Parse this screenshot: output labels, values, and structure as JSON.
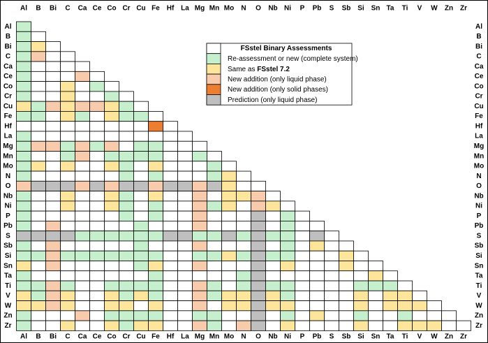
{
  "elements": [
    "Al",
    "B",
    "Bi",
    "C",
    "Ca",
    "Ce",
    "Co",
    "Cr",
    "Cu",
    "Fe",
    "Hf",
    "La",
    "Mg",
    "Mn",
    "Mo",
    "N",
    "O",
    "Nb",
    "Ni",
    "P",
    "Pb",
    "S",
    "Sb",
    "Si",
    "Sn",
    "Ta",
    "Ti",
    "V",
    "W",
    "Zn",
    "Zr"
  ],
  "legend": {
    "title": "FSstel Binary Assessments",
    "items": [
      {
        "label": "Re-assessment or new (complete system)",
        "color": "#c6efce"
      },
      {
        "label": "Same as ",
        "emphasis": "FSstel 7.2",
        "color": "#fde69b"
      },
      {
        "label": "New addition (only liquid phase)",
        "color": "#f8cbad"
      },
      {
        "label": "New addition (only solid phases)",
        "color": "#ed7d31"
      },
      {
        "label": "Prediction (only liquid phase)",
        "color": "#bfbfbf"
      }
    ]
  },
  "matrix": [
    [
      0
    ],
    [
      0,
      null
    ],
    [
      0,
      1,
      null
    ],
    [
      0,
      2,
      null,
      null
    ],
    [
      0,
      null,
      null,
      null,
      null
    ],
    [
      0,
      null,
      null,
      null,
      2,
      null
    ],
    [
      0,
      null,
      null,
      1,
      null,
      0,
      null
    ],
    [
      0,
      null,
      null,
      1,
      null,
      null,
      0,
      null
    ],
    [
      1,
      0,
      2,
      1,
      2,
      2,
      1,
      0,
      null
    ],
    [
      0,
      0,
      null,
      1,
      0,
      null,
      1,
      0,
      0,
      null
    ],
    [
      null,
      null,
      null,
      null,
      null,
      null,
      null,
      null,
      null,
      3,
      null
    ],
    [
      0,
      null,
      null,
      null,
      null,
      null,
      null,
      null,
      null,
      null,
      null,
      null
    ],
    [
      0,
      2,
      2,
      0,
      2,
      0,
      2,
      null,
      0,
      0,
      null,
      null,
      null
    ],
    [
      0,
      null,
      null,
      0,
      2,
      null,
      0,
      0,
      0,
      0,
      null,
      null,
      0,
      null
    ],
    [
      0,
      1,
      null,
      1,
      null,
      null,
      1,
      0,
      null,
      1,
      null,
      null,
      null,
      0,
      null
    ],
    [
      0,
      null,
      null,
      null,
      null,
      null,
      null,
      0,
      null,
      0,
      null,
      null,
      null,
      0,
      1,
      null
    ],
    [
      2,
      4,
      4,
      4,
      2,
      4,
      2,
      4,
      4,
      2,
      4,
      4,
      2,
      4,
      1,
      null,
      null
    ],
    [
      0,
      null,
      null,
      1,
      null,
      null,
      1,
      0,
      null,
      1,
      null,
      null,
      2,
      null,
      1,
      1,
      2,
      null
    ],
    [
      0,
      null,
      null,
      1,
      null,
      null,
      1,
      0,
      null,
      0,
      null,
      null,
      2,
      0,
      1,
      null,
      2,
      1,
      null
    ],
    [
      0,
      null,
      null,
      null,
      null,
      null,
      null,
      0,
      null,
      0,
      null,
      null,
      2,
      null,
      null,
      null,
      4,
      null,
      0,
      null
    ],
    [
      0,
      null,
      2,
      null,
      null,
      null,
      null,
      null,
      0,
      null,
      null,
      null,
      2,
      null,
      null,
      null,
      4,
      null,
      0,
      null,
      null
    ],
    [
      4,
      4,
      4,
      4,
      0,
      0,
      0,
      0,
      0,
      0,
      4,
      4,
      0,
      0,
      4,
      0,
      4,
      0,
      0,
      null,
      4,
      null
    ],
    [
      0,
      null,
      2,
      null,
      null,
      null,
      null,
      null,
      0,
      null,
      null,
      null,
      2,
      null,
      null,
      null,
      4,
      null,
      0,
      null,
      1,
      null,
      null
    ],
    [
      0,
      0,
      2,
      0,
      0,
      0,
      0,
      0,
      0,
      0,
      null,
      null,
      0,
      0,
      1,
      0,
      4,
      0,
      0,
      null,
      null,
      null,
      1,
      null
    ],
    [
      1,
      null,
      2,
      null,
      null,
      null,
      null,
      null,
      0,
      1,
      null,
      null,
      2,
      null,
      null,
      null,
      4,
      null,
      1,
      null,
      null,
      null,
      1,
      null,
      null
    ],
    [
      0,
      null,
      null,
      null,
      null,
      null,
      null,
      null,
      null,
      0,
      null,
      null,
      null,
      null,
      null,
      0,
      4,
      null,
      null,
      null,
      null,
      null,
      null,
      null,
      1,
      null
    ],
    [
      0,
      0,
      2,
      0,
      null,
      null,
      0,
      0,
      0,
      0,
      null,
      null,
      2,
      0,
      null,
      0,
      4,
      0,
      0,
      null,
      null,
      null,
      null,
      0,
      0,
      0,
      null
    ],
    [
      1,
      0,
      2,
      1,
      null,
      null,
      1,
      0,
      1,
      0,
      null,
      null,
      2,
      0,
      1,
      1,
      4,
      1,
      0,
      null,
      null,
      null,
      null,
      1,
      null,
      1,
      1,
      null
    ],
    [
      1,
      1,
      2,
      1,
      null,
      null,
      1,
      1,
      null,
      1,
      null,
      null,
      2,
      null,
      1,
      1,
      4,
      1,
      1,
      null,
      null,
      null,
      null,
      1,
      null,
      1,
      1,
      1,
      null
    ],
    [
      0,
      null,
      null,
      null,
      2,
      null,
      0,
      0,
      0,
      0,
      null,
      null,
      0,
      0,
      null,
      null,
      4,
      null,
      0,
      null,
      1,
      null,
      null,
      0,
      null,
      null,
      0,
      null,
      null,
      null
    ],
    [
      0,
      null,
      null,
      1,
      null,
      null,
      1,
      0,
      1,
      1,
      null,
      null,
      2,
      0,
      null,
      2,
      4,
      null,
      1,
      null,
      null,
      null,
      null,
      1,
      null,
      null,
      1,
      1,
      1,
      null,
      null
    ]
  ]
}
